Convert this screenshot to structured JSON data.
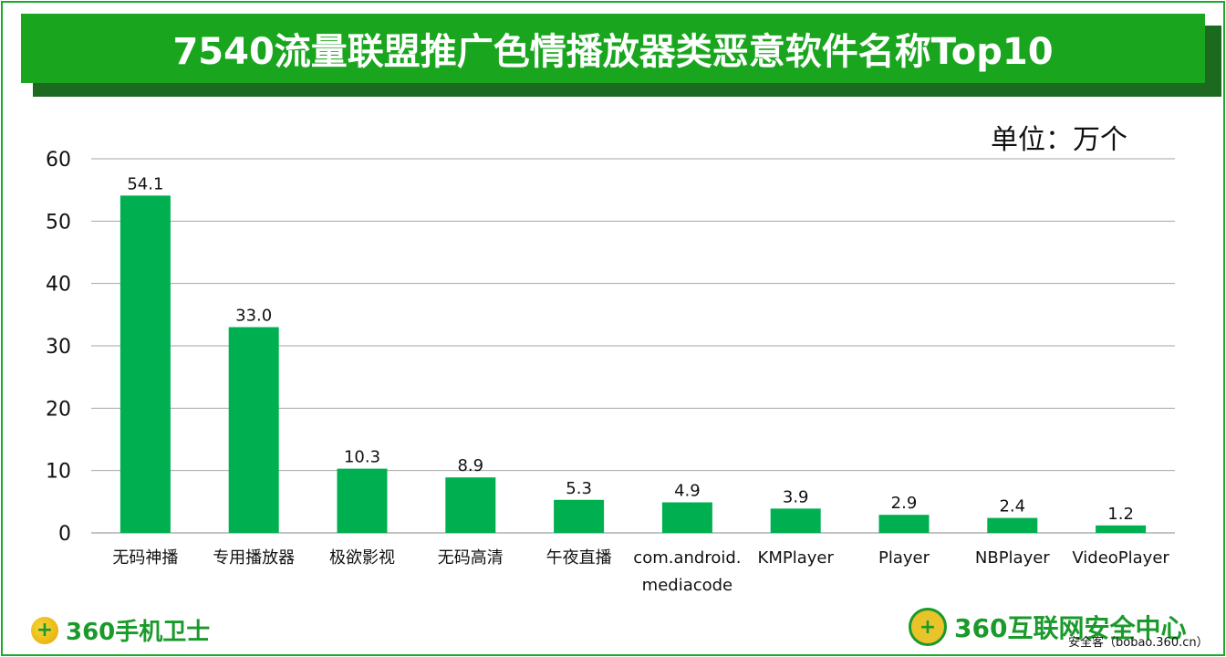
{
  "header": {
    "title": "7540流量联盟推广色情播放器类恶意软件名称Top10"
  },
  "chart_data": {
    "type": "bar",
    "title": "7540流量联盟推广色情播放器类恶意软件名称Top10",
    "unit": "单位：万个",
    "categories": [
      "无码神播",
      "专用播放器",
      "极欲影视",
      "无码高清",
      "午夜直播",
      "com.android.\nmediacode",
      "KMPlayer",
      "Player",
      "NBPlayer",
      "VideoPlayer"
    ],
    "values": [
      54.1,
      33.0,
      10.3,
      8.9,
      5.3,
      4.9,
      3.9,
      2.9,
      2.4,
      1.2
    ],
    "value_labels": [
      "54.1",
      "33.0",
      "10.3",
      "8.9",
      "5.3",
      "4.9",
      "3.9",
      "2.9",
      "2.4",
      "1.2"
    ],
    "yticks": [
      "0",
      "10",
      "20",
      "30",
      "40",
      "50",
      "60"
    ],
    "ylim": [
      0,
      60
    ],
    "grid": true,
    "bar_color": "#00b050"
  },
  "footer": {
    "left_logo_text": "360手机卫士",
    "left_logo_glyph": "+",
    "right_logo_text": "360互联网安全中心",
    "right_logo_glyph": "+",
    "source": "安全客（bobao.360.cn）"
  }
}
